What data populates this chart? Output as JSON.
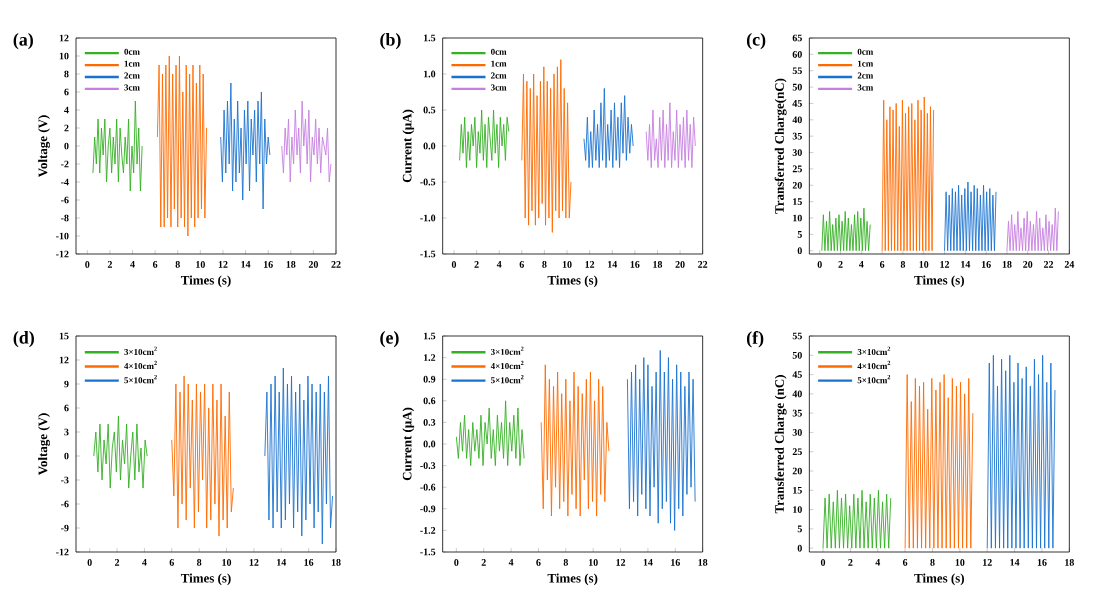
{
  "chart_data": [
    {
      "type": "line",
      "title": "(a)",
      "xlabel": "Times (s)",
      "ylabel": "Voltage (V)",
      "legend": "top left",
      "xlim": [
        -1,
        22
      ],
      "xticks": [
        0,
        2,
        4,
        6,
        8,
        10,
        12,
        14,
        16,
        18,
        20,
        22
      ],
      "ylim": [
        -12,
        12
      ],
      "yticks": [
        -12,
        -10,
        -8,
        -6,
        -4,
        -2,
        0,
        2,
        4,
        6,
        8,
        10,
        12
      ],
      "series": [
        {
          "name": "0cm",
          "color": "#33b023",
          "x": [
            0.5,
            0.65,
            0.8,
            0.95,
            1.1,
            1.25,
            1.4,
            1.55,
            1.7,
            1.85,
            2.0,
            2.15,
            2.3,
            2.45,
            2.6,
            2.75,
            2.9,
            3.05,
            3.2,
            3.35,
            3.5,
            3.65,
            3.8,
            3.95,
            4.1,
            4.25,
            4.4,
            4.55,
            4.7,
            4.85
          ],
          "values": [
            -3,
            1,
            -2,
            3,
            -3,
            2,
            -1,
            3,
            -4,
            0,
            2,
            -3,
            1,
            -2,
            3,
            -4,
            2,
            -1,
            -3,
            1,
            -2,
            3,
            -5,
            0,
            -3,
            5,
            -2,
            2,
            -5,
            0
          ]
        },
        {
          "name": "1cm",
          "color": "#ff6a00",
          "x": [
            6.2,
            6.35,
            6.5,
            6.65,
            6.8,
            6.95,
            7.1,
            7.25,
            7.4,
            7.55,
            7.7,
            7.85,
            8.0,
            8.15,
            8.3,
            8.45,
            8.6,
            8.75,
            8.9,
            9.05,
            9.2,
            9.35,
            9.5,
            9.65,
            9.8,
            9.95,
            10.1,
            10.25,
            10.4,
            10.55
          ],
          "values": [
            1,
            9,
            -9,
            8,
            -9,
            9,
            -8,
            10,
            -9,
            8,
            -7,
            9,
            -9,
            10,
            -8,
            6,
            -9,
            9,
            -10,
            8,
            -8,
            9,
            -9,
            7,
            -8,
            9,
            -7,
            8,
            -8,
            2
          ]
        },
        {
          "name": "2cm",
          "color": "#1a72d0",
          "x": [
            11.8,
            11.95,
            12.1,
            12.25,
            12.4,
            12.55,
            12.7,
            12.85,
            13.0,
            13.15,
            13.3,
            13.45,
            13.6,
            13.75,
            13.9,
            14.05,
            14.2,
            14.35,
            14.5,
            14.65,
            14.8,
            14.95,
            15.1,
            15.25,
            15.4,
            15.55,
            15.7,
            15.85,
            16.0,
            16.15
          ],
          "values": [
            1,
            -4,
            4,
            -3,
            5,
            -2,
            7,
            -5,
            3,
            -4,
            5,
            -3,
            2,
            -6,
            4,
            -2,
            5,
            -5,
            3,
            -1,
            4,
            -4,
            5,
            -2,
            6,
            -7,
            3,
            -2,
            1,
            -1
          ]
        },
        {
          "name": "3cm",
          "color": "#c67ee0",
          "x": [
            17.2,
            17.35,
            17.5,
            17.65,
            17.8,
            17.95,
            18.1,
            18.25,
            18.4,
            18.55,
            18.7,
            18.85,
            19.0,
            19.15,
            19.3,
            19.45,
            19.6,
            19.75,
            19.9,
            20.05,
            20.2,
            20.35,
            20.5,
            20.65,
            20.8,
            20.95,
            21.1,
            21.25,
            21.4,
            21.55
          ],
          "values": [
            0,
            -3,
            2,
            -1,
            3,
            -4,
            1,
            -2,
            4,
            -1,
            2,
            -3,
            5,
            0,
            3,
            -2,
            4,
            -4,
            1,
            -1,
            3,
            -2,
            2,
            -3,
            1,
            0,
            -1,
            2,
            -4,
            -2
          ]
        }
      ]
    },
    {
      "type": "line",
      "title": "(b)",
      "xlabel": "Times (s)",
      "ylabel": "Current (μA)",
      "legend": "top left",
      "xlim": [
        -1,
        22
      ],
      "xticks": [
        0,
        2,
        4,
        6,
        8,
        10,
        12,
        14,
        16,
        18,
        20,
        22
      ],
      "ylim": [
        -1.5,
        1.5
      ],
      "yticks": [
        {
          "value": -1.5,
          "label": "-1.5"
        },
        {
          "value": -1.0,
          "label": "-1.0"
        },
        {
          "value": -0.5,
          "label": "-0.5"
        },
        {
          "value": 0,
          "label": "0.0"
        },
        {
          "value": 0.5,
          "label": "0.5"
        },
        {
          "value": 1.0,
          "label": "1.0"
        },
        {
          "value": 1.5,
          "label": "1.5"
        }
      ],
      "series": [
        {
          "name": "0cm",
          "color": "#33b023",
          "x": [
            0.5,
            0.65,
            0.8,
            0.95,
            1.1,
            1.25,
            1.4,
            1.55,
            1.7,
            1.85,
            2.0,
            2.15,
            2.3,
            2.45,
            2.6,
            2.75,
            2.9,
            3.05,
            3.2,
            3.35,
            3.5,
            3.65,
            3.8,
            3.95,
            4.1,
            4.25,
            4.4,
            4.55,
            4.7,
            4.85
          ],
          "values": [
            -0.2,
            0.3,
            -0.1,
            0.4,
            -0.3,
            0.2,
            -0.2,
            0.3,
            0,
            0.4,
            -0.3,
            0.2,
            -0.1,
            0.5,
            -0.2,
            0.3,
            -0.3,
            0.4,
            0.1,
            -0.2,
            0.5,
            -0.1,
            0.3,
            -0.3,
            0.4,
            0,
            0.3,
            -0.2,
            0.4,
            0.2
          ]
        },
        {
          "name": "1cm",
          "color": "#ff6a00",
          "x": [
            6.0,
            6.15,
            6.3,
            6.45,
            6.6,
            6.75,
            6.9,
            7.05,
            7.2,
            7.35,
            7.5,
            7.65,
            7.8,
            7.95,
            8.1,
            8.25,
            8.4,
            8.55,
            8.7,
            8.85,
            9.0,
            9.15,
            9.3,
            9.45,
            9.6,
            9.75,
            9.9,
            10.05,
            10.2,
            10.35
          ],
          "values": [
            -0.2,
            1.0,
            -1.0,
            0.9,
            -1.1,
            0.8,
            -0.9,
            1.0,
            -1.1,
            0.7,
            -1.0,
            0.9,
            -0.8,
            1.1,
            -1.1,
            0.9,
            -1.0,
            0.8,
            -1.2,
            1.0,
            -0.9,
            1.1,
            -1.0,
            1.2,
            -0.9,
            0.8,
            -1.0,
            0.6,
            -1.0,
            -0.5
          ]
        },
        {
          "name": "2cm",
          "color": "#1a72d0",
          "x": [
            11.5,
            11.65,
            11.8,
            11.95,
            12.1,
            12.25,
            12.4,
            12.55,
            12.7,
            12.85,
            13.0,
            13.15,
            13.3,
            13.45,
            13.6,
            13.75,
            13.9,
            14.05,
            14.2,
            14.35,
            14.5,
            14.65,
            14.8,
            14.95,
            15.1,
            15.25,
            15.4,
            15.55,
            15.7,
            15.85
          ],
          "values": [
            0.1,
            -0.2,
            0.4,
            -0.3,
            0.2,
            -0.3,
            0.5,
            -0.2,
            0.3,
            -0.3,
            0.6,
            -0.2,
            0.8,
            -0.3,
            0.3,
            -0.2,
            0.5,
            -0.3,
            0.6,
            -0.2,
            0.4,
            -0.3,
            0.6,
            -0.1,
            0.7,
            -0.2,
            0.4,
            -0.1,
            0.3,
            0
          ]
        },
        {
          "name": "3cm",
          "color": "#c67ee0",
          "x": [
            17.0,
            17.15,
            17.3,
            17.45,
            17.6,
            17.75,
            17.9,
            18.05,
            18.2,
            18.35,
            18.5,
            18.65,
            18.8,
            18.95,
            19.1,
            19.25,
            19.4,
            19.55,
            19.7,
            19.85,
            20.0,
            20.15,
            20.3,
            20.45,
            20.6,
            20.75,
            20.9,
            21.05,
            21.2,
            21.35
          ],
          "values": [
            0.2,
            -0.2,
            0.3,
            -0.3,
            0.5,
            -0.2,
            0.1,
            -0.3,
            0.4,
            -0.2,
            0.5,
            -0.3,
            0.3,
            -0.2,
            0.6,
            -0.3,
            0.2,
            -0.2,
            0.5,
            -0.3,
            0.3,
            -0.2,
            0.4,
            -0.3,
            0.5,
            -0.2,
            0.3,
            -0.3,
            0.4,
            0
          ]
        }
      ]
    },
    {
      "type": "line",
      "title": "(c)",
      "xlabel": "Times (s)",
      "ylabel": "Transferred Charge(nC)",
      "legend": "top left",
      "xlim": [
        -1,
        24
      ],
      "xticks": [
        0,
        2,
        4,
        6,
        8,
        10,
        12,
        14,
        16,
        18,
        20,
        22,
        24
      ],
      "ylim": [
        -1,
        65
      ],
      "yticks": [
        0,
        5,
        10,
        15,
        20,
        25,
        30,
        35,
        40,
        45,
        50,
        55,
        60,
        65
      ],
      "series": [
        {
          "name": "0cm",
          "color": "#33b023",
          "x": [
            0.2,
            0.35,
            0.5,
            0.65,
            0.8,
            0.95,
            1.1,
            1.25,
            1.4,
            1.55,
            1.7,
            1.85,
            2.0,
            2.15,
            2.3,
            2.45,
            2.6,
            2.75,
            2.9,
            3.05,
            3.2,
            3.35,
            3.5,
            3.65,
            3.8,
            3.95,
            4.1,
            4.25,
            4.4,
            4.55,
            4.7,
            4.85
          ],
          "values": [
            0,
            11,
            0,
            9,
            0,
            12,
            0,
            8,
            0,
            10,
            0,
            11,
            0,
            9,
            0,
            12,
            0,
            10,
            0,
            8,
            0,
            11,
            0,
            12,
            0,
            10,
            0,
            13,
            0,
            9,
            0,
            8
          ]
        },
        {
          "name": "1cm",
          "color": "#ff6a00",
          "x": [
            6.0,
            6.15,
            6.3,
            6.45,
            6.6,
            6.75,
            6.9,
            7.05,
            7.2,
            7.35,
            7.5,
            7.65,
            7.8,
            7.95,
            8.1,
            8.25,
            8.4,
            8.55,
            8.7,
            8.85,
            9.0,
            9.15,
            9.3,
            9.45,
            9.6,
            9.75,
            9.9,
            10.05,
            10.2,
            10.35,
            10.5,
            10.65,
            10.8,
            10.95
          ],
          "values": [
            0,
            46,
            0,
            40,
            0,
            44,
            0,
            43,
            0,
            45,
            0,
            38,
            0,
            46,
            0,
            42,
            0,
            44,
            0,
            45,
            0,
            40,
            0,
            46,
            0,
            43,
            0,
            47,
            0,
            42,
            0,
            44,
            0,
            43
          ]
        },
        {
          "name": "2cm",
          "color": "#1a72d0",
          "x": [
            12.0,
            12.15,
            12.3,
            12.45,
            12.6,
            12.75,
            12.9,
            13.05,
            13.2,
            13.35,
            13.5,
            13.65,
            13.8,
            13.95,
            14.1,
            14.25,
            14.4,
            14.55,
            14.7,
            14.85,
            15.0,
            15.15,
            15.3,
            15.45,
            15.6,
            15.75,
            15.9,
            16.05,
            16.2,
            16.35,
            16.5,
            16.65,
            16.8,
            16.95
          ],
          "values": [
            0,
            18,
            0,
            17,
            0,
            19,
            0,
            18,
            0,
            20,
            0,
            17,
            0,
            19,
            0,
            21,
            0,
            18,
            0,
            20,
            0,
            19,
            0,
            17,
            0,
            20,
            0,
            18,
            0,
            19,
            0,
            17,
            0,
            18
          ]
        },
        {
          "name": "3cm",
          "color": "#c67ee0",
          "x": [
            18.0,
            18.15,
            18.3,
            18.45,
            18.6,
            18.75,
            18.9,
            19.05,
            19.2,
            19.35,
            19.5,
            19.65,
            19.8,
            19.95,
            20.1,
            20.25,
            20.4,
            20.55,
            20.7,
            20.85,
            21.0,
            21.15,
            21.3,
            21.45,
            21.6,
            21.75,
            21.9,
            22.05,
            22.2,
            22.35,
            22.5,
            22.65,
            22.8,
            22.95
          ],
          "values": [
            0,
            9,
            0,
            11,
            0,
            8,
            0,
            12,
            0,
            7,
            0,
            10,
            0,
            12,
            0,
            9,
            0,
            8,
            0,
            12,
            0,
            10,
            0,
            7,
            0,
            11,
            0,
            9,
            0,
            8,
            0,
            13,
            0,
            12
          ]
        }
      ]
    },
    {
      "type": "line",
      "title": "(d)",
      "xlabel": "Times (s)",
      "ylabel": "Voltage (V)",
      "legend": "top left",
      "xlim": [
        -1,
        18
      ],
      "xticks": [
        0,
        2,
        4,
        6,
        8,
        10,
        12,
        14,
        16,
        18
      ],
      "ylim": [
        -12,
        15
      ],
      "yticks": [
        -12,
        -9,
        -6,
        -3,
        0,
        3,
        6,
        9,
        12,
        15
      ],
      "series": [
        {
          "name": "3×10cm$^{2}$",
          "color": "#33b023",
          "x": [
            0.3,
            0.45,
            0.6,
            0.75,
            0.9,
            1.05,
            1.2,
            1.35,
            1.5,
            1.65,
            1.8,
            1.95,
            2.1,
            2.25,
            2.4,
            2.55,
            2.7,
            2.85,
            3.0,
            3.15,
            3.3,
            3.45,
            3.6,
            3.75,
            3.9,
            4.05,
            4.2
          ],
          "values": [
            0,
            3,
            -2,
            4,
            -3,
            2,
            -1,
            4,
            -4,
            1,
            3,
            -2,
            5,
            -3,
            2,
            -1,
            4,
            -4,
            0,
            3,
            -3,
            4,
            -2,
            1,
            -4,
            2,
            0
          ]
        },
        {
          "name": "4×10cm$^{2}$",
          "color": "#ff6a00",
          "x": [
            6.0,
            6.15,
            6.3,
            6.45,
            6.6,
            6.75,
            6.9,
            7.05,
            7.2,
            7.35,
            7.5,
            7.65,
            7.8,
            7.95,
            8.1,
            8.25,
            8.4,
            8.55,
            8.7,
            8.85,
            9.0,
            9.15,
            9.3,
            9.45,
            9.6,
            9.75,
            9.9,
            10.05,
            10.2,
            10.35,
            10.5
          ],
          "values": [
            2,
            -5,
            9,
            -9,
            8,
            -6,
            10,
            -8,
            9,
            -4,
            7,
            -9,
            9,
            -7,
            8,
            -3,
            9,
            -9,
            6,
            -8,
            9,
            -6,
            7,
            -10,
            9,
            -8,
            5,
            -9,
            8,
            -7,
            -4
          ]
        },
        {
          "name": "5×10cm$^{2}$",
          "color": "#1a72d0",
          "x": [
            12.8,
            12.95,
            13.1,
            13.25,
            13.4,
            13.55,
            13.7,
            13.85,
            14.0,
            14.15,
            14.3,
            14.45,
            14.6,
            14.75,
            14.9,
            15.05,
            15.2,
            15.35,
            15.5,
            15.65,
            15.8,
            15.95,
            16.1,
            16.25,
            16.4,
            16.55,
            16.7,
            16.85,
            17.0,
            17.15,
            17.3,
            17.45,
            17.6,
            17.75
          ],
          "values": [
            0,
            8,
            -8,
            9,
            -9,
            10,
            -7,
            8,
            -9,
            11,
            -8,
            9,
            -6,
            10,
            -9,
            8,
            -7,
            9,
            -10,
            7,
            -8,
            10,
            -6,
            9,
            -9,
            8,
            -7,
            9,
            -11,
            8,
            -6,
            10,
            -9,
            -5
          ]
        }
      ]
    },
    {
      "type": "line",
      "title": "(e)",
      "xlabel": "Times (s)",
      "ylabel": "Current (μA)",
      "legend": "top left",
      "xlim": [
        -1,
        18
      ],
      "xticks": [
        0,
        2,
        4,
        6,
        8,
        10,
        12,
        14,
        16,
        18
      ],
      "ylim": [
        -1.5,
        1.5
      ],
      "yticks": [
        {
          "value": -1.5,
          "label": "-1.5"
        },
        {
          "value": -1.2,
          "label": "-1.2"
        },
        {
          "value": -0.9,
          "label": "-0.9"
        },
        {
          "value": -0.6,
          "label": "-0.6"
        },
        {
          "value": -0.3,
          "label": "-0.3"
        },
        {
          "value": 0,
          "label": "0.0"
        },
        {
          "value": 0.3,
          "label": "0.3"
        },
        {
          "value": 0.6,
          "label": "0.6"
        },
        {
          "value": 0.9,
          "label": "0.9"
        },
        {
          "value": 1.2,
          "label": "1.2"
        },
        {
          "value": 1.5,
          "label": "1.5"
        }
      ],
      "series": [
        {
          "name": "3×10cm$^{2}$",
          "color": "#33b023",
          "x": [
            0.0,
            0.15,
            0.3,
            0.45,
            0.6,
            0.75,
            0.9,
            1.05,
            1.2,
            1.35,
            1.5,
            1.65,
            1.8,
            1.95,
            2.1,
            2.25,
            2.4,
            2.55,
            2.7,
            2.85,
            3.0,
            3.15,
            3.3,
            3.45,
            3.6,
            3.75,
            3.9,
            4.05,
            4.2,
            4.35,
            4.5,
            4.65,
            4.8,
            4.95
          ],
          "values": [
            0.1,
            -0.2,
            0.3,
            -0.1,
            0.4,
            -0.2,
            0.2,
            -0.3,
            0.3,
            -0.1,
            0.2,
            -0.2,
            0.4,
            -0.3,
            0.3,
            0,
            0.5,
            -0.2,
            0.2,
            -0.3,
            0.4,
            -0.1,
            0.3,
            -0.2,
            0.6,
            -0.3,
            0.3,
            -0.1,
            0.4,
            -0.2,
            0.5,
            -0.3,
            0.2,
            -0.2
          ]
        },
        {
          "name": "4×10cm$^{2}$",
          "color": "#ff6a00",
          "x": [
            6.2,
            6.35,
            6.5,
            6.65,
            6.8,
            6.95,
            7.1,
            7.25,
            7.4,
            7.55,
            7.7,
            7.85,
            8.0,
            8.15,
            8.3,
            8.45,
            8.6,
            8.75,
            8.9,
            9.05,
            9.2,
            9.35,
            9.5,
            9.65,
            9.8,
            9.95,
            10.1,
            10.25,
            10.4,
            10.55,
            10.7,
            10.85,
            11.0,
            11.15
          ],
          "values": [
            0.3,
            -0.9,
            1.1,
            -0.5,
            0.9,
            -1.0,
            0.8,
            -0.6,
            1.0,
            -0.9,
            0.7,
            -0.8,
            0.9,
            -1.0,
            0.6,
            -0.7,
            1.0,
            -0.9,
            0.8,
            -1.0,
            0.7,
            -0.5,
            0.9,
            -0.9,
            1.0,
            -0.8,
            0.6,
            -1.0,
            0.9,
            -0.7,
            0.8,
            -0.8,
            0.3,
            -0.1
          ]
        },
        {
          "name": "5×10cm$^{2}$",
          "color": "#1a72d0",
          "x": [
            12.5,
            12.65,
            12.8,
            12.95,
            13.1,
            13.25,
            13.4,
            13.55,
            13.7,
            13.85,
            14.0,
            14.15,
            14.3,
            14.45,
            14.6,
            14.75,
            14.9,
            15.05,
            15.2,
            15.35,
            15.5,
            15.65,
            15.8,
            15.95,
            16.1,
            16.25,
            16.4,
            16.55,
            16.7,
            16.85,
            17.0,
            17.15,
            17.3,
            17.45
          ],
          "values": [
            0.9,
            -0.9,
            1.0,
            -0.8,
            1.1,
            -1.0,
            0.9,
            -0.7,
            1.2,
            -0.9,
            1.1,
            -1.0,
            0.8,
            -0.6,
            1.0,
            -1.1,
            1.3,
            -0.9,
            1.0,
            -0.8,
            1.2,
            -1.1,
            0.9,
            -1.2,
            1.1,
            -0.9,
            1.0,
            -1.0,
            0.8,
            -0.7,
            1.0,
            -0.6,
            0.9,
            -0.8
          ]
        }
      ]
    },
    {
      "type": "line",
      "title": "(f)",
      "xlabel": "Times (s)",
      "ylabel": "Transferred Charge (nC)",
      "legend": "top left",
      "xlim": [
        -1,
        18
      ],
      "xticks": [
        0,
        2,
        4,
        6,
        8,
        10,
        12,
        14,
        16,
        18
      ],
      "ylim": [
        -1,
        55
      ],
      "yticks": [
        0,
        5,
        10,
        15,
        20,
        25,
        30,
        35,
        40,
        45,
        50,
        55
      ],
      "series": [
        {
          "name": "3×10cm$^{2}$",
          "color": "#33b023",
          "x": [
            0.0,
            0.15,
            0.3,
            0.45,
            0.6,
            0.75,
            0.9,
            1.05,
            1.2,
            1.35,
            1.5,
            1.65,
            1.8,
            1.95,
            2.1,
            2.25,
            2.4,
            2.55,
            2.7,
            2.85,
            3.0,
            3.15,
            3.3,
            3.45,
            3.6,
            3.75,
            3.9,
            4.05,
            4.2,
            4.35,
            4.5,
            4.65,
            4.8,
            4.95
          ],
          "values": [
            0,
            13,
            0,
            14,
            0,
            12,
            0,
            15,
            0,
            13,
            0,
            14,
            0,
            11,
            0,
            14,
            0,
            13,
            0,
            15,
            0,
            12,
            0,
            14,
            0,
            13,
            0,
            15,
            0,
            12,
            0,
            14,
            0,
            13
          ]
        },
        {
          "name": "4×10cm$^{2}$",
          "color": "#ff6a00",
          "x": [
            6.0,
            6.15,
            6.3,
            6.45,
            6.6,
            6.75,
            6.9,
            7.05,
            7.2,
            7.35,
            7.5,
            7.65,
            7.8,
            7.95,
            8.1,
            8.25,
            8.4,
            8.55,
            8.7,
            8.85,
            9.0,
            9.15,
            9.3,
            9.45,
            9.6,
            9.75,
            9.9,
            10.05,
            10.2,
            10.35,
            10.5,
            10.65,
            10.8,
            10.95
          ],
          "values": [
            0,
            45,
            0,
            38,
            0,
            44,
            0,
            42,
            0,
            43,
            0,
            36,
            0,
            44,
            0,
            41,
            0,
            43,
            0,
            45,
            0,
            39,
            0,
            44,
            0,
            42,
            0,
            43,
            0,
            40,
            0,
            44,
            0,
            35
          ]
        },
        {
          "name": "5×10cm$^{2}$",
          "color": "#1a72d0",
          "x": [
            12.0,
            12.15,
            12.3,
            12.45,
            12.6,
            12.75,
            12.9,
            13.05,
            13.2,
            13.35,
            13.5,
            13.65,
            13.8,
            13.95,
            14.1,
            14.25,
            14.4,
            14.55,
            14.7,
            14.85,
            15.0,
            15.15,
            15.3,
            15.45,
            15.6,
            15.75,
            15.9,
            16.05,
            16.2,
            16.35,
            16.5,
            16.65,
            16.8,
            16.95
          ],
          "values": [
            0,
            48,
            0,
            50,
            0,
            42,
            0,
            49,
            0,
            46,
            0,
            50,
            0,
            43,
            0,
            48,
            0,
            44,
            0,
            47,
            0,
            42,
            0,
            49,
            0,
            45,
            0,
            50,
            0,
            43,
            0,
            48,
            0,
            41
          ]
        }
      ]
    }
  ]
}
